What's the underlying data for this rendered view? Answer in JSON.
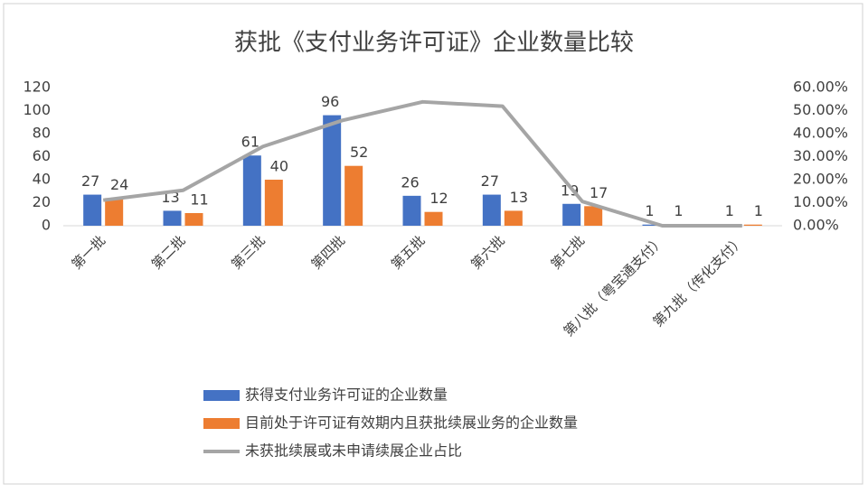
{
  "chart_data": {
    "type": "bar-line",
    "title": "获批《支付业务许可证》企业数量比较",
    "categories": [
      "第一批",
      "第二批",
      "第三批",
      "第四批",
      "第五批",
      "第六批",
      "第七批",
      "第八批（粤宝通支付）",
      "第九批（传化支付）"
    ],
    "series": [
      {
        "name": "获得支付业务许可证的企业数量",
        "type": "bar",
        "color": "#4472c4",
        "values": [
          27,
          13,
          61,
          96,
          26,
          27,
          19,
          1,
          1
        ]
      },
      {
        "name": "目前处于许可证有效期内且获批续展业务的企业数量",
        "type": "bar",
        "color": "#ed7d31",
        "values": [
          24,
          11,
          40,
          52,
          12,
          13,
          17,
          1,
          1
        ]
      },
      {
        "name": "未获批续展或未申请续展企业占比",
        "type": "line",
        "axis": "y2",
        "color": "#a5a5a5",
        "values": [
          11.1,
          15.4,
          34.4,
          45.8,
          53.8,
          51.9,
          10.5,
          0,
          0
        ]
      }
    ],
    "ylim": [
      0,
      120
    ],
    "yticks": [
      0,
      20,
      40,
      60,
      80,
      100,
      120
    ],
    "y2lim": [
      0,
      60
    ],
    "y2ticks": [
      {
        "value": 0,
        "label": "0.00%"
      },
      {
        "value": 10,
        "label": "10.00%"
      },
      {
        "value": 20,
        "label": "20.00%"
      },
      {
        "value": 30,
        "label": "30.00%"
      },
      {
        "value": 40,
        "label": "40.00%"
      },
      {
        "value": 50,
        "label": "50.00%"
      },
      {
        "value": 60,
        "label": "60.00%"
      }
    ],
    "grid": false,
    "legend": "bottom-left"
  }
}
